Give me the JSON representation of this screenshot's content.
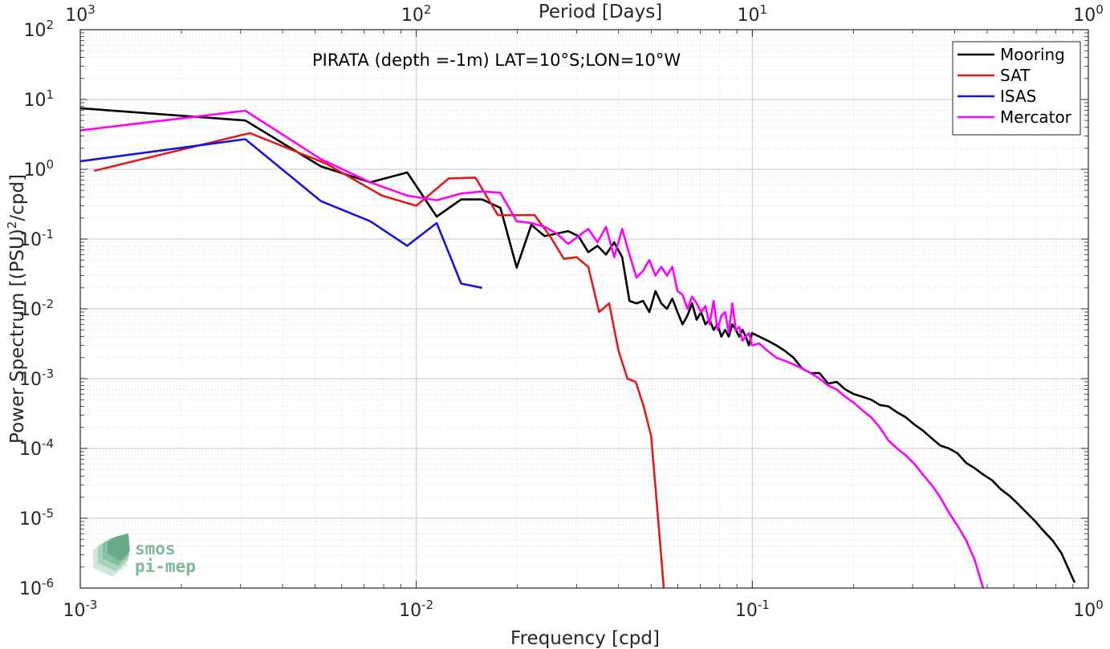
{
  "chart_data": {
    "type": "line",
    "title": "PIRATA (depth =-1m) LAT=10°S;LON=10°W",
    "xlabel": "Frequency [cpd]",
    "ylabel_main": "Power Spectrum [(PSU)",
    "ylabel_sup": "2",
    "ylabel_tail": "/cpd]",
    "top_xlabel": "Period [Days]",
    "x_scale": "log",
    "y_scale": "log",
    "xlim": [
      0.001,
      1
    ],
    "ylim": [
      1e-06,
      100
    ],
    "grid": true,
    "legend_position": "top-right",
    "x_ticks": [
      {
        "value": 0.001,
        "base": "10",
        "exp": "-3"
      },
      {
        "value": 0.01,
        "base": "10",
        "exp": "-2"
      },
      {
        "value": 0.1,
        "base": "10",
        "exp": "-1"
      },
      {
        "value": 1,
        "base": "10",
        "exp": "0"
      }
    ],
    "top_ticks": [
      {
        "value": 0.001,
        "base": "10",
        "exp": "3"
      },
      {
        "value": 0.01,
        "base": "10",
        "exp": "2"
      },
      {
        "value": 0.1,
        "base": "10",
        "exp": "1"
      },
      {
        "value": 1,
        "base": "10",
        "exp": "0"
      }
    ],
    "y_ticks": [
      {
        "value": 1e-06,
        "base": "10",
        "exp": "-6"
      },
      {
        "value": 1e-05,
        "base": "10",
        "exp": "-5"
      },
      {
        "value": 0.0001,
        "base": "10",
        "exp": "-4"
      },
      {
        "value": 0.001,
        "base": "10",
        "exp": "-3"
      },
      {
        "value": 0.01,
        "base": "10",
        "exp": "-2"
      },
      {
        "value": 0.1,
        "base": "10",
        "exp": "-1"
      },
      {
        "value": 1,
        "base": "10",
        "exp": "0"
      },
      {
        "value": 10,
        "base": "10",
        "exp": "1"
      },
      {
        "value": 100,
        "base": "10",
        "exp": "2"
      }
    ],
    "series": [
      {
        "name": "Mooring",
        "color": "#000000",
        "x": [
          0.001,
          0.0031,
          0.0052,
          0.0073,
          0.0094,
          0.0115,
          0.0136,
          0.0157,
          0.0178,
          0.0199,
          0.022,
          0.0241,
          0.0262,
          0.0283,
          0.0304,
          0.0325,
          0.0346,
          0.0367,
          0.0388,
          0.041,
          0.0431,
          0.0452,
          0.0473,
          0.0494,
          0.0515,
          0.0536,
          0.0557,
          0.0578,
          0.0599,
          0.062,
          0.0641,
          0.0662,
          0.0683,
          0.0704,
          0.0725,
          0.0746,
          0.0767,
          0.0788,
          0.0809,
          0.083,
          0.0851,
          0.0872,
          0.0893,
          0.0914,
          0.0935,
          0.0956,
          0.0977,
          0.0998,
          0.1048,
          0.1111,
          0.1179,
          0.125,
          0.1326,
          0.1407,
          0.1493,
          0.1584,
          0.168,
          0.1783,
          0.1891,
          0.2006,
          0.2129,
          0.2258,
          0.2396,
          0.2542,
          0.2697,
          0.2862,
          0.3036,
          0.3221,
          0.3418,
          0.3626,
          0.3847,
          0.4082,
          0.4331,
          0.4595,
          0.4875,
          0.5172,
          0.5488,
          0.5823,
          0.6178,
          0.6555,
          0.6955,
          0.7379,
          0.7829,
          0.8307,
          0.8813,
          0.91
        ],
        "y": [
          7.5,
          5.0,
          1.1,
          0.65,
          0.9,
          0.21,
          0.37,
          0.37,
          0.28,
          0.039,
          0.16,
          0.11,
          0.12,
          0.13,
          0.11,
          0.065,
          0.08,
          0.06,
          0.09,
          0.055,
          0.013,
          0.012,
          0.013,
          0.009,
          0.018,
          0.012,
          0.01,
          0.014,
          0.009,
          0.006,
          0.008,
          0.012,
          0.007,
          0.009,
          0.006,
          0.007,
          0.005,
          0.006,
          0.004,
          0.005,
          0.004,
          0.006,
          0.005,
          0.004,
          0.005,
          0.004,
          0.003,
          0.0045,
          0.004,
          0.0035,
          0.003,
          0.0025,
          0.002,
          0.0014,
          0.0012,
          0.0012,
          0.00085,
          0.0009,
          0.0007,
          0.0006,
          0.00055,
          0.0005,
          0.00042,
          0.0004,
          0.00033,
          0.00028,
          0.00022,
          0.00018,
          0.00014,
          0.00011,
          0.0001,
          8.5e-05,
          6.2e-05,
          5.2e-05,
          4.2e-05,
          3.5e-05,
          2.6e-05,
          2.1e-05,
          1.6e-05,
          1.2e-05,
          9e-06,
          6.5e-06,
          4.8e-06,
          3.2e-06,
          1.7e-06,
          1.2e-06
        ]
      },
      {
        "name": "SAT",
        "color": "#e31a1c",
        "x": [
          0.0011,
          0.0032,
          0.0054,
          0.0079,
          0.01,
          0.0125,
          0.015,
          0.0175,
          0.02,
          0.0225,
          0.025,
          0.0275,
          0.03,
          0.0325,
          0.035,
          0.0375,
          0.04,
          0.0425,
          0.045,
          0.0475,
          0.05,
          0.0525,
          0.0545
        ],
        "y": [
          0.95,
          3.3,
          1.2,
          0.42,
          0.3,
          0.74,
          0.76,
          0.22,
          0.22,
          0.22,
          0.11,
          0.052,
          0.055,
          0.04,
          0.009,
          0.012,
          0.0025,
          0.001,
          0.0009,
          0.0004,
          0.00015,
          9.2e-06,
          1e-06
        ]
      },
      {
        "name": "ISAS",
        "color": "#1414e0",
        "x": [
          0.001,
          0.0031,
          0.0052,
          0.0073,
          0.0094,
          0.0115,
          0.0136,
          0.0157
        ],
        "y": [
          1.3,
          2.7,
          0.35,
          0.18,
          0.08,
          0.17,
          0.023,
          0.02
        ]
      },
      {
        "name": "Mercator",
        "color": "#ff00ff",
        "x": [
          0.001,
          0.0031,
          0.0052,
          0.0073,
          0.0094,
          0.0115,
          0.0136,
          0.0157,
          0.0178,
          0.0199,
          0.022,
          0.0241,
          0.0262,
          0.0283,
          0.0304,
          0.0325,
          0.0346,
          0.0367,
          0.0388,
          0.041,
          0.0431,
          0.0452,
          0.0473,
          0.0494,
          0.0515,
          0.0536,
          0.0557,
          0.0578,
          0.0599,
          0.062,
          0.0641,
          0.0662,
          0.0683,
          0.0704,
          0.0725,
          0.0746,
          0.0767,
          0.0788,
          0.0809,
          0.083,
          0.0851,
          0.0872,
          0.0893,
          0.0914,
          0.0935,
          0.0956,
          0.0977,
          0.0998,
          0.1048,
          0.1111,
          0.1179,
          0.125,
          0.1326,
          0.1407,
          0.1493,
          0.1584,
          0.168,
          0.1783,
          0.1891,
          0.2006,
          0.2129,
          0.2258,
          0.2396,
          0.2542,
          0.2697,
          0.2862,
          0.3036,
          0.3221,
          0.3418,
          0.3626,
          0.3847,
          0.4082,
          0.4331,
          0.4595,
          0.4862
        ],
        "y": [
          3.6,
          6.9,
          1.4,
          0.65,
          0.42,
          0.36,
          0.45,
          0.48,
          0.46,
          0.18,
          0.17,
          0.15,
          0.12,
          0.085,
          0.11,
          0.14,
          0.09,
          0.15,
          0.055,
          0.14,
          0.06,
          0.028,
          0.035,
          0.05,
          0.03,
          0.04,
          0.03,
          0.04,
          0.018,
          0.016,
          0.01,
          0.015,
          0.012,
          0.009,
          0.011,
          0.006,
          0.013,
          0.005,
          0.008,
          0.009,
          0.0045,
          0.012,
          0.005,
          0.0055,
          0.0035,
          0.004,
          0.0045,
          0.003,
          0.0032,
          0.0025,
          0.002,
          0.0018,
          0.0016,
          0.0014,
          0.0012,
          0.001,
          0.0008,
          0.0007,
          0.00055,
          0.00045,
          0.00035,
          0.00028,
          0.0002,
          0.00013,
          0.0001,
          8e-05,
          6e-05,
          4.2e-05,
          3e-05,
          2e-05,
          1.2e-05,
          7.8e-06,
          4.8e-06,
          2.5e-06,
          1e-06
        ]
      }
    ]
  },
  "logo": {
    "line1": "smos",
    "line2": "pi-mep"
  }
}
